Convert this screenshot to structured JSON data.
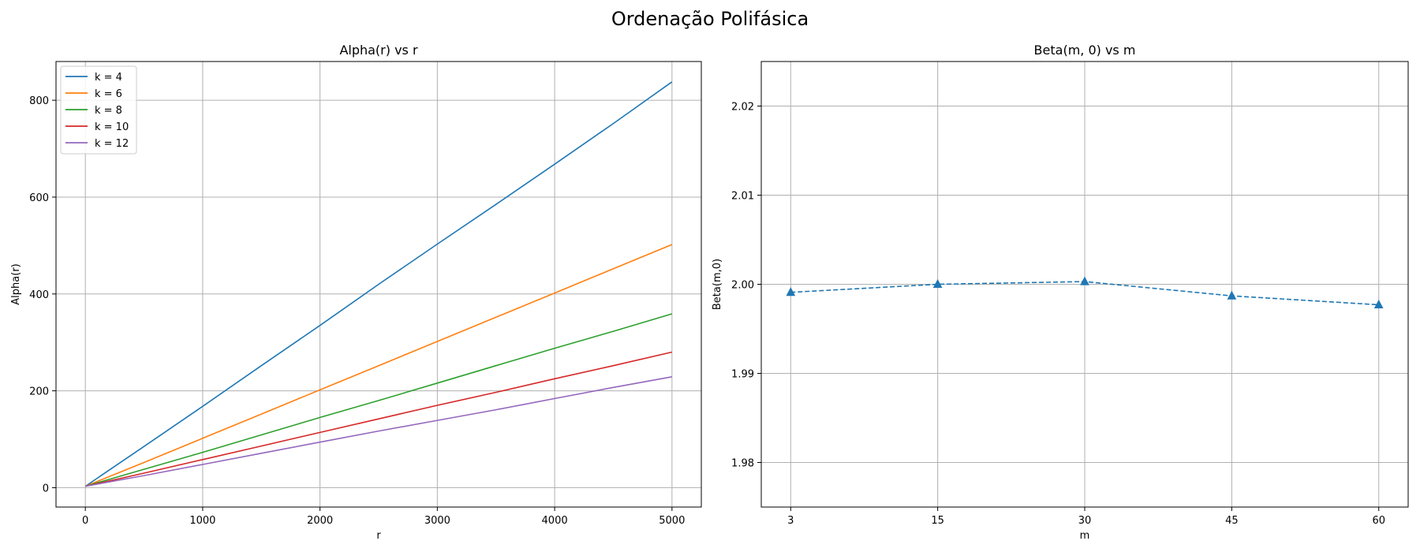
{
  "figure": {
    "suptitle": "Ordenação Polifásica"
  },
  "chart_data": [
    {
      "type": "line",
      "title": "Alpha(r) vs r",
      "xlabel": "r",
      "ylabel": "Alpha(r)",
      "xlim": [
        -250,
        5250
      ],
      "ylim": [
        -40,
        880
      ],
      "xticks": [
        0,
        1000,
        2000,
        3000,
        4000,
        5000
      ],
      "yticks": [
        0,
        200,
        400,
        600,
        800
      ],
      "grid": true,
      "legend_position": "upper-left",
      "x": [
        1,
        500,
        1000,
        1500,
        2000,
        2500,
        3000,
        3500,
        4000,
        4500,
        5000
      ],
      "series": [
        {
          "name": "k = 4",
          "color": "#1f77b4",
          "values": [
            3,
            85,
            168,
            252,
            335,
            420,
            503,
            585,
            668,
            752,
            838
          ]
        },
        {
          "name": "k = 6",
          "color": "#ff7f0e",
          "values": [
            3,
            52,
            102,
            152,
            202,
            252,
            302,
            352,
            402,
            452,
            502
          ]
        },
        {
          "name": "k = 8",
          "color": "#2ca02c",
          "values": [
            3,
            38,
            73,
            109,
            145,
            180,
            216,
            252,
            288,
            323,
            359
          ]
        },
        {
          "name": "k = 10",
          "color": "#d62728",
          "values": [
            3,
            30,
            58,
            86,
            114,
            142,
            170,
            197,
            225,
            252,
            280
          ]
        },
        {
          "name": "k = 12",
          "color": "#9467bd",
          "values": [
            3,
            25,
            48,
            71,
            94,
            117,
            139,
            161,
            184,
            207,
            229
          ]
        }
      ]
    },
    {
      "type": "line",
      "title": "Beta(m, 0) vs m",
      "xlabel": "m",
      "ylabel": "Beta(m,0)",
      "xlim": [
        -0.2,
        4.2
      ],
      "ylim": [
        1.975,
        2.025
      ],
      "categories": [
        "3",
        "15",
        "30",
        "45",
        "60"
      ],
      "yticks": [
        1.98,
        1.99,
        2.0,
        2.01,
        2.02
      ],
      "ytick_labels": [
        "1.98",
        "1.99",
        "2.00",
        "2.01",
        "2.02"
      ],
      "grid": true,
      "line_style": "dashed",
      "marker": "triangle",
      "series": [
        {
          "color": "#1f77b4",
          "values": [
            1.9991,
            2.0,
            2.0003,
            1.9987,
            1.9977
          ]
        }
      ]
    }
  ]
}
